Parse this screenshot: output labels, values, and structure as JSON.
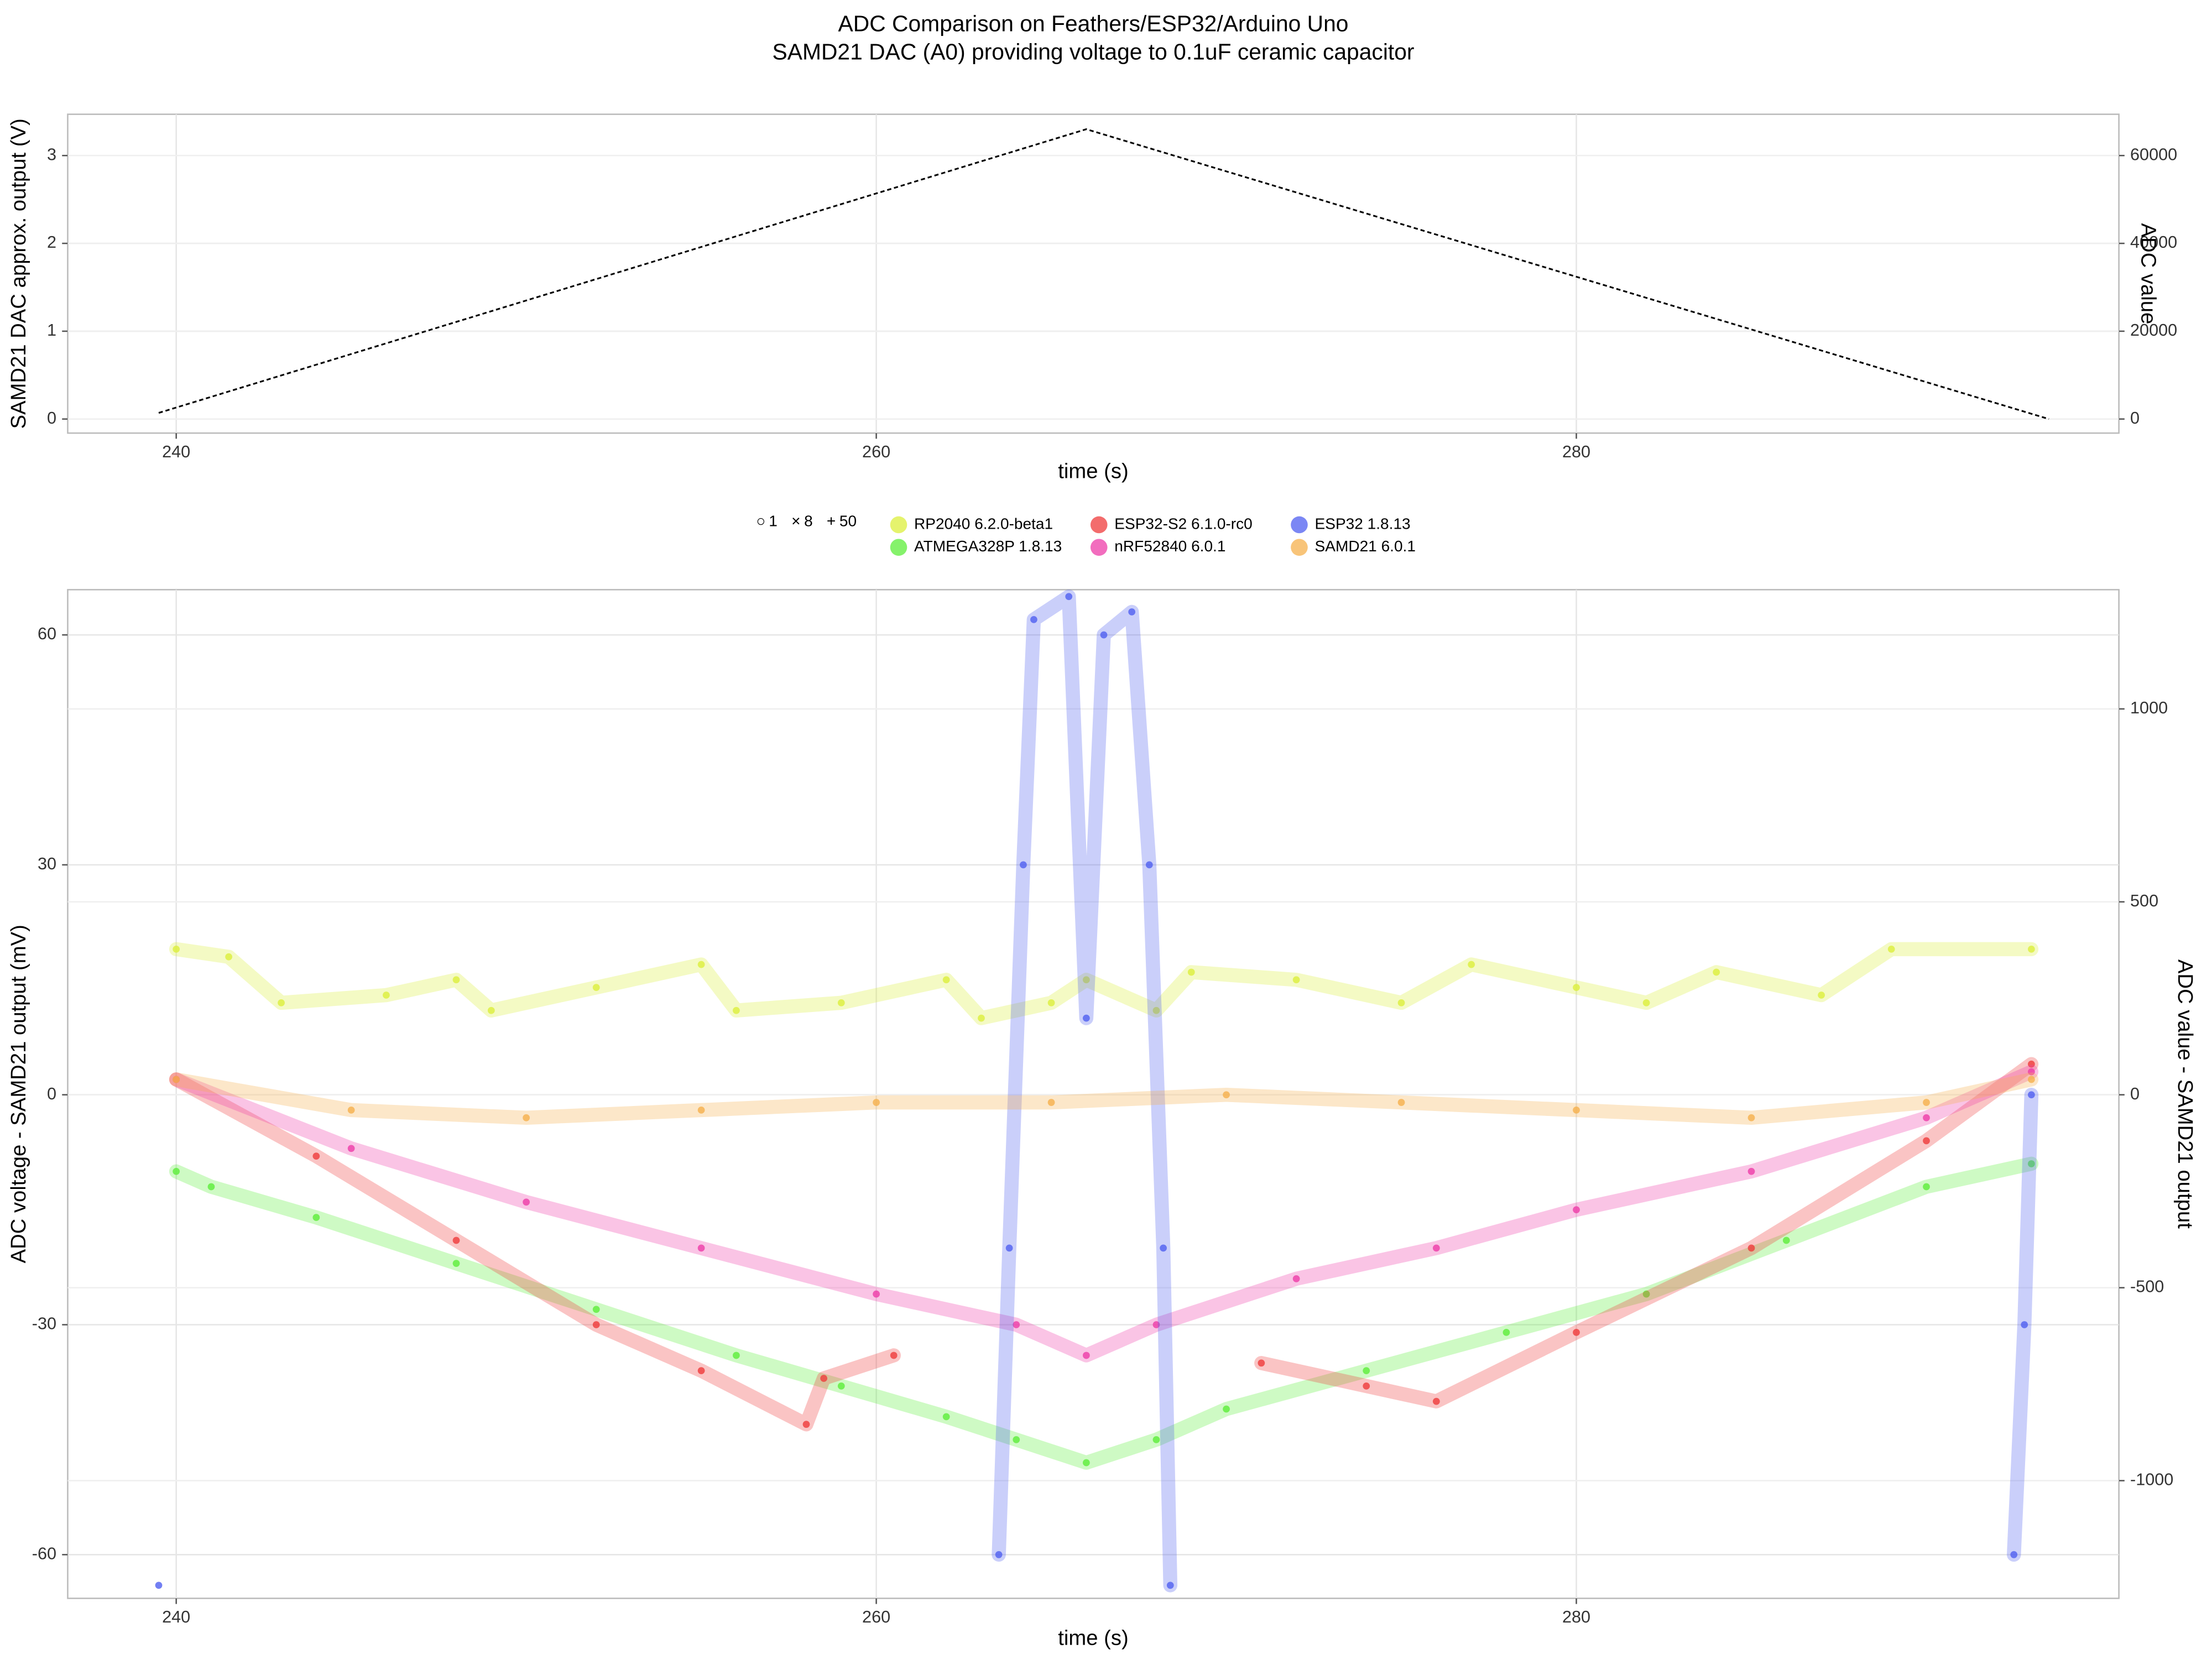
{
  "chart_data": [
    {
      "type": "line",
      "title": "ADC Comparison on Feathers/ESP32/Arduino Uno",
      "subtitle": "SAMD21 DAC (A0) providing voltage to 0.1uF ceramic capacitor",
      "x_label": "time (s)",
      "y_label": "SAMD21 DAC approx. output (V)",
      "y2_label": "ADC value",
      "x": [
        239.5,
        266,
        293.5
      ],
      "values": [
        0.07,
        3.3,
        0.0
      ],
      "color": "#000000",
      "xlim": [
        236.9,
        295.5
      ],
      "xticks": [
        240,
        260,
        280
      ],
      "ylim": [
        -0.16,
        3.47
      ],
      "yticks": [
        0,
        1,
        2,
        3
      ],
      "y2lim": [
        -3200,
        69400
      ],
      "y2ticks": [
        0,
        20000,
        40000,
        60000
      ],
      "grid": true
    },
    {
      "type": "scatter",
      "x_label": "time (s)",
      "y_label": "ADC voltage - SAMD21 output (mV)",
      "y2_label": "ADC value - SAMD21 output",
      "shape_legend": [
        1,
        8,
        50
      ],
      "xlim": [
        236.9,
        295.5
      ],
      "xticks": [
        240,
        260,
        280
      ],
      "ylim": [
        -65.7,
        65.9
      ],
      "yticks": [
        -60,
        -30,
        0,
        30,
        60
      ],
      "y2lim": [
        -1305,
        1309
      ],
      "y2ticks": [
        -1000,
        -500,
        0,
        500,
        1000
      ],
      "grid": true,
      "series": [
        {
          "name": "RP2040 6.2.0-beta1",
          "color": "#dcef3c",
          "x": [
            240,
            241.5,
            243,
            246,
            248,
            249,
            252,
            255,
            256,
            259,
            262,
            263,
            265,
            266,
            268,
            269,
            272,
            275,
            277,
            280,
            282,
            284,
            287,
            289,
            293
          ],
          "values": [
            19,
            18,
            12,
            13,
            15,
            11,
            14,
            17,
            11,
            12,
            15,
            10,
            12,
            15,
            11,
            16,
            15,
            12,
            17,
            14,
            12,
            16,
            13,
            19,
            19
          ]
        },
        {
          "name": "ATMEGA328P 1.8.13",
          "color": "#5ced3a",
          "x": [
            240,
            241,
            244,
            248,
            252,
            256,
            259,
            262,
            264,
            266,
            268,
            270,
            274,
            278,
            282,
            286,
            290,
            293
          ],
          "values": [
            -10,
            -12,
            -16,
            -22,
            -28,
            -34,
            -38,
            -42,
            -45,
            -48,
            -45,
            -41,
            -36,
            -31,
            -26,
            -19,
            -12,
            -9
          ]
        },
        {
          "name": "ESP32-S2 6.1.0-rc0",
          "color": "#ef3b3b",
          "x": [
            240,
            244,
            248,
            252,
            255,
            258,
            258.5,
            260.5,
            265,
            271,
            274,
            276,
            280,
            285,
            290,
            293
          ],
          "values": [
            2,
            -8,
            -19,
            -30,
            -36,
            -43,
            -37,
            -34,
            null,
            -35,
            -38,
            -40,
            -31,
            -20,
            -6,
            4
          ]
        },
        {
          "name": "nRF52840 6.0.1",
          "color": "#ee3ca8",
          "x": [
            240,
            245,
            250,
            255,
            260,
            264,
            266,
            268,
            272,
            276,
            280,
            285,
            290,
            293
          ],
          "values": [
            2,
            -7,
            -14,
            -20,
            -26,
            -30,
            -34,
            -30,
            -24,
            -20,
            -15,
            -10,
            -3,
            3
          ]
        },
        {
          "name": "ESP32 1.8.13",
          "color": "#4f5ff0",
          "x": [
            239.5,
            250,
            263.5,
            263.8,
            264.2,
            264.5,
            265.5,
            266,
            266.5,
            267.3,
            267.8,
            268.2,
            268.4,
            280,
            292.5,
            292.8,
            293
          ],
          "values": [
            -64,
            null,
            -60,
            -20,
            30,
            62,
            65,
            10,
            60,
            63,
            30,
            -20,
            -64,
            null,
            -60,
            -30,
            0
          ]
        },
        {
          "name": "SAMD21  6.0.1",
          "color": "#f5b04c",
          "x": [
            240,
            245,
            250,
            255,
            260,
            265,
            270,
            275,
            280,
            285,
            290,
            293
          ],
          "values": [
            2,
            -2,
            -3,
            -2,
            -1,
            -1,
            0,
            -1,
            -2,
            -3,
            -1,
            2
          ]
        }
      ]
    }
  ]
}
